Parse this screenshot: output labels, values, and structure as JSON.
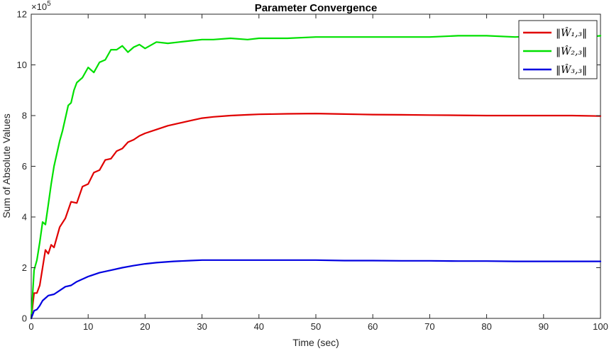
{
  "chart_data": {
    "type": "line",
    "title": "Parameter Convergence",
    "xlabel": "Time (sec)",
    "ylabel": "Sum of Absolute Values",
    "xlim": [
      0,
      100
    ],
    "ylim": [
      0,
      12
    ],
    "y_multiplier_label": "×10",
    "y_multiplier_exponent": "5",
    "x_ticks": [
      0,
      10,
      20,
      30,
      40,
      50,
      60,
      70,
      80,
      90,
      100
    ],
    "y_ticks": [
      0,
      2,
      4,
      6,
      8,
      10,
      12
    ],
    "grid": false,
    "legend_position": "top-right",
    "series": [
      {
        "name": "‖Ŵ₁,₃‖",
        "color": "#e00000",
        "x": [
          0,
          0.5,
          1,
          1.5,
          2,
          2.5,
          3,
          3.5,
          4,
          5,
          6,
          7,
          8,
          9,
          10,
          11,
          12,
          13,
          14,
          15,
          16,
          17,
          18,
          19,
          20,
          22,
          24,
          26,
          28,
          30,
          32,
          35,
          38,
          40,
          45,
          50,
          55,
          60,
          65,
          70,
          75,
          80,
          85,
          90,
          95,
          100
        ],
        "values": [
          0,
          1.0,
          1.0,
          1.3,
          2.0,
          2.7,
          2.55,
          2.9,
          2.8,
          3.6,
          3.95,
          4.6,
          4.55,
          5.2,
          5.3,
          5.75,
          5.85,
          6.25,
          6.3,
          6.6,
          6.7,
          6.95,
          7.05,
          7.2,
          7.3,
          7.45,
          7.6,
          7.7,
          7.8,
          7.9,
          7.95,
          8.0,
          8.03,
          8.05,
          8.07,
          8.08,
          8.06,
          8.04,
          8.03,
          8.02,
          8.01,
          8.0,
          8.0,
          8.0,
          8.0,
          7.98
        ]
      },
      {
        "name": "‖Ŵ₂,₃‖",
        "color": "#00e000",
        "x": [
          0,
          0.5,
          1,
          1.5,
          2,
          2.5,
          3,
          3.5,
          4,
          4.5,
          5,
          5.5,
          6,
          6.5,
          7,
          7.5,
          8,
          9,
          10,
          11,
          12,
          13,
          14,
          15,
          16,
          17,
          18,
          19,
          20,
          22,
          24,
          26,
          28,
          30,
          32,
          35,
          38,
          40,
          45,
          50,
          55,
          60,
          65,
          70,
          75,
          80,
          85,
          90,
          95,
          98,
          100
        ],
        "values": [
          0,
          1.9,
          2.3,
          3.0,
          3.8,
          3.7,
          4.5,
          5.3,
          6.0,
          6.5,
          7.0,
          7.4,
          7.9,
          8.4,
          8.5,
          9.0,
          9.3,
          9.5,
          9.9,
          9.7,
          10.1,
          10.2,
          10.6,
          10.6,
          10.75,
          10.5,
          10.7,
          10.8,
          10.65,
          10.9,
          10.85,
          10.9,
          10.95,
          11.0,
          11.0,
          11.05,
          11.0,
          11.05,
          11.05,
          11.1,
          11.1,
          11.1,
          11.1,
          11.1,
          11.15,
          11.15,
          11.1,
          11.15,
          11.15,
          11.1,
          11.15
        ]
      },
      {
        "name": "‖Ŵ₃,₃‖",
        "color": "#0000e0",
        "x": [
          0,
          0.5,
          1,
          1.5,
          2,
          3,
          4,
          5,
          6,
          7,
          8,
          9,
          10,
          12,
          14,
          16,
          18,
          20,
          22,
          25,
          28,
          30,
          35,
          40,
          45,
          50,
          55,
          60,
          65,
          70,
          75,
          80,
          85,
          90,
          95,
          100
        ],
        "values": [
          0,
          0.3,
          0.35,
          0.5,
          0.7,
          0.9,
          0.95,
          1.1,
          1.25,
          1.3,
          1.45,
          1.55,
          1.65,
          1.8,
          1.9,
          2.0,
          2.08,
          2.15,
          2.2,
          2.25,
          2.28,
          2.3,
          2.3,
          2.3,
          2.3,
          2.3,
          2.28,
          2.28,
          2.27,
          2.27,
          2.26,
          2.26,
          2.25,
          2.25,
          2.25,
          2.25
        ]
      }
    ]
  }
}
